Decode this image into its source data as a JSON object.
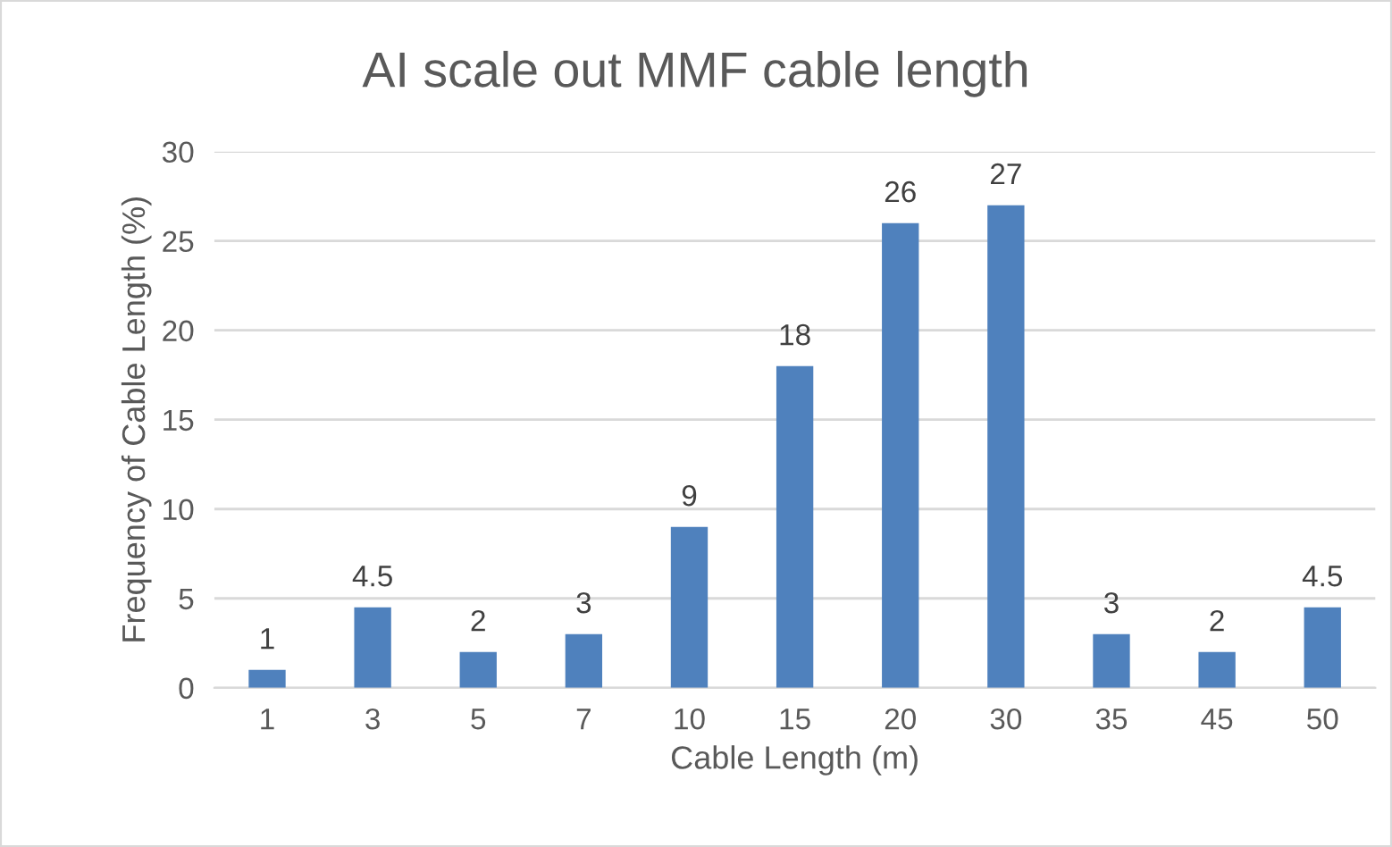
{
  "chart_data": {
    "type": "bar",
    "title": "AI scale out MMF cable length",
    "xlabel": "Cable Length (m)",
    "ylabel": "Frequency of Cable Length (%)",
    "categories": [
      "1",
      "3",
      "5",
      "7",
      "10",
      "15",
      "20",
      "30",
      "35",
      "45",
      "50"
    ],
    "values": [
      1,
      4.5,
      2,
      3,
      9,
      18,
      26,
      27,
      3,
      2,
      4.5
    ],
    "color": "#4f81bd",
    "ylim": [
      0,
      30
    ],
    "yticks": [
      0,
      5,
      10,
      15,
      20,
      25,
      30
    ],
    "grid": "y",
    "data_labels": true,
    "legend": false
  }
}
